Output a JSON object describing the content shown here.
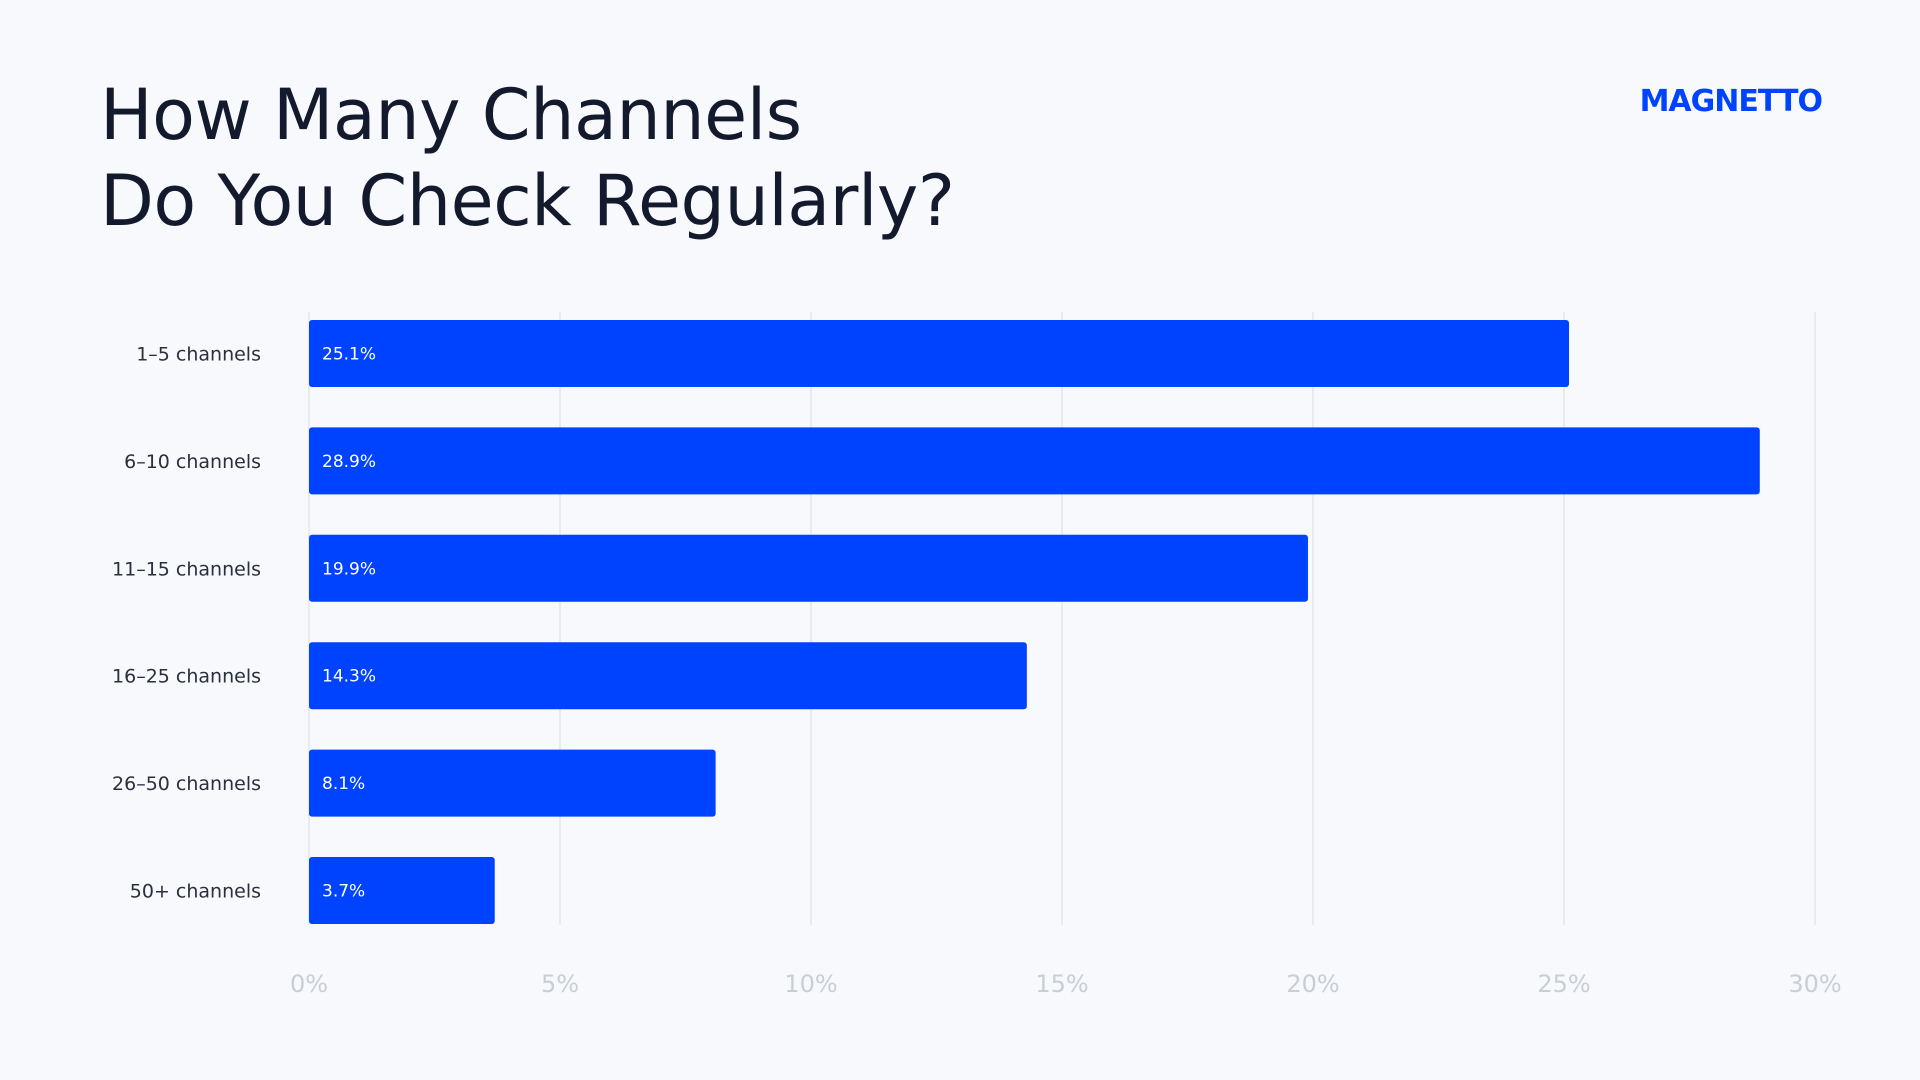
{
  "title_lines": [
    "How Many Channels",
    "Do You Check Regularly?"
  ],
  "logo_text": "MAGNETTO",
  "colors": {
    "bar": "#0043ff",
    "background": "#f7f9fc",
    "grid": "#d9dde3",
    "tick": "#c9ced6",
    "category": "#2a2f3d"
  },
  "chart_data": {
    "type": "bar",
    "orientation": "horizontal",
    "categories": [
      "1–5 channels",
      "6–10 channels",
      "11–15 channels",
      "16–25 channels",
      "26–50 channels",
      "50+ channels"
    ],
    "values": [
      25.1,
      28.9,
      19.9,
      14.3,
      8.1,
      3.7
    ],
    "value_labels": [
      "25.1%",
      "28.9%",
      "19.9%",
      "14.3%",
      "8.1%",
      "3.7%"
    ],
    "title": "How Many Channels Do You Check Regularly?",
    "xlabel": "",
    "ylabel": "",
    "xlim": [
      0,
      30
    ],
    "x_ticks": [
      0,
      5,
      10,
      15,
      20,
      25,
      30
    ],
    "x_tick_labels": [
      "0%",
      "5%",
      "10%",
      "15%",
      "20%",
      "25%",
      "30%"
    ],
    "grid": "vertical"
  }
}
